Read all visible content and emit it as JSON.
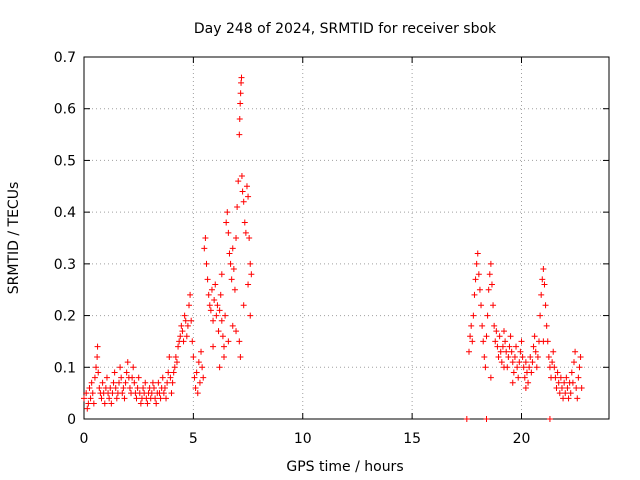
{
  "chart_data": {
    "type": "scatter",
    "title": "Day 248 of 2024, SRMTID for receiver sbok",
    "xlabel": "GPS time / hours",
    "ylabel": "SRMTID / TECUs",
    "xlim": [
      0,
      24
    ],
    "ylim": [
      0,
      0.7
    ],
    "x_ticks": [
      0,
      5,
      10,
      15,
      20
    ],
    "x_tick_labels": [
      "0",
      "5",
      "10",
      "15",
      "20"
    ],
    "y_ticks": [
      0,
      0.1,
      0.2,
      0.3,
      0.4,
      0.5,
      0.6,
      0.7
    ],
    "y_tick_labels": [
      "0",
      "0.1",
      "0.2",
      "0.3",
      "0.4",
      "0.5",
      "0.6",
      "0.7"
    ],
    "grid": true,
    "marker": "+",
    "color": "#ff0000",
    "series": [
      {
        "name": "SRMTID",
        "points": [
          [
            0.0,
            0.04
          ],
          [
            0.1,
            0.05
          ],
          [
            0.15,
            0.02
          ],
          [
            0.2,
            0.03
          ],
          [
            0.25,
            0.06
          ],
          [
            0.3,
            0.04
          ],
          [
            0.35,
            0.07
          ],
          [
            0.4,
            0.05
          ],
          [
            0.45,
            0.03
          ],
          [
            0.5,
            0.08
          ],
          [
            0.55,
            0.1
          ],
          [
            0.6,
            0.12
          ],
          [
            0.62,
            0.14
          ],
          [
            0.65,
            0.09
          ],
          [
            0.7,
            0.06
          ],
          [
            0.75,
            0.05
          ],
          [
            0.8,
            0.04
          ],
          [
            0.85,
            0.07
          ],
          [
            0.9,
            0.05
          ],
          [
            0.95,
            0.03
          ],
          [
            1.0,
            0.06
          ],
          [
            1.05,
            0.08
          ],
          [
            1.1,
            0.05
          ],
          [
            1.15,
            0.04
          ],
          [
            1.2,
            0.06
          ],
          [
            1.25,
            0.03
          ],
          [
            1.3,
            0.05
          ],
          [
            1.35,
            0.07
          ],
          [
            1.4,
            0.09
          ],
          [
            1.45,
            0.06
          ],
          [
            1.5,
            0.04
          ],
          [
            1.55,
            0.05
          ],
          [
            1.6,
            0.07
          ],
          [
            1.65,
            0.1
          ],
          [
            1.7,
            0.08
          ],
          [
            1.75,
            0.05
          ],
          [
            1.8,
            0.06
          ],
          [
            1.85,
            0.04
          ],
          [
            1.9,
            0.07
          ],
          [
            1.95,
            0.09
          ],
          [
            2.0,
            0.11
          ],
          [
            2.05,
            0.08
          ],
          [
            2.1,
            0.06
          ],
          [
            2.15,
            0.05
          ],
          [
            2.2,
            0.08
          ],
          [
            2.25,
            0.1
          ],
          [
            2.3,
            0.07
          ],
          [
            2.35,
            0.05
          ],
          [
            2.4,
            0.04
          ],
          [
            2.45,
            0.06
          ],
          [
            2.5,
            0.08
          ],
          [
            2.55,
            0.05
          ],
          [
            2.6,
            0.03
          ],
          [
            2.65,
            0.04
          ],
          [
            2.7,
            0.06
          ],
          [
            2.75,
            0.05
          ],
          [
            2.8,
            0.07
          ],
          [
            2.85,
            0.04
          ],
          [
            2.9,
            0.03
          ],
          [
            2.95,
            0.05
          ],
          [
            3.0,
            0.06
          ],
          [
            3.05,
            0.04
          ],
          [
            3.1,
            0.05
          ],
          [
            3.15,
            0.07
          ],
          [
            3.2,
            0.06
          ],
          [
            3.25,
            0.04
          ],
          [
            3.3,
            0.03
          ],
          [
            3.35,
            0.05
          ],
          [
            3.4,
            0.07
          ],
          [
            3.45,
            0.05
          ],
          [
            3.5,
            0.04
          ],
          [
            3.55,
            0.06
          ],
          [
            3.6,
            0.08
          ],
          [
            3.65,
            0.05
          ],
          [
            3.7,
            0.06
          ],
          [
            3.75,
            0.04
          ],
          [
            3.8,
            0.07
          ],
          [
            3.85,
            0.09
          ],
          [
            3.9,
            0.12
          ],
          [
            3.95,
            0.08
          ],
          [
            4.0,
            0.05
          ],
          [
            4.05,
            0.07
          ],
          [
            4.1,
            0.09
          ],
          [
            4.15,
            0.1
          ],
          [
            4.2,
            0.12
          ],
          [
            4.25,
            0.11
          ],
          [
            4.3,
            0.14
          ],
          [
            4.35,
            0.15
          ],
          [
            4.4,
            0.16
          ],
          [
            4.45,
            0.18
          ],
          [
            4.5,
            0.17
          ],
          [
            4.55,
            0.15
          ],
          [
            4.6,
            0.2
          ],
          [
            4.65,
            0.19
          ],
          [
            4.7,
            0.16
          ],
          [
            4.75,
            0.18
          ],
          [
            4.8,
            0.22
          ],
          [
            4.85,
            0.24
          ],
          [
            4.9,
            0.19
          ],
          [
            4.95,
            0.15
          ],
          [
            5.0,
            0.12
          ],
          [
            5.05,
            0.08
          ],
          [
            5.1,
            0.06
          ],
          [
            5.15,
            0.09
          ],
          [
            5.2,
            0.05
          ],
          [
            5.25,
            0.11
          ],
          [
            5.3,
            0.07
          ],
          [
            5.35,
            0.13
          ],
          [
            5.4,
            0.1
          ],
          [
            5.45,
            0.08
          ],
          [
            5.5,
            0.33
          ],
          [
            5.55,
            0.35
          ],
          [
            5.6,
            0.3
          ],
          [
            5.65,
            0.27
          ],
          [
            5.7,
            0.24
          ],
          [
            5.75,
            0.22
          ],
          [
            5.8,
            0.21
          ],
          [
            5.85,
            0.25
          ],
          [
            5.9,
            0.19
          ],
          [
            5.95,
            0.23
          ],
          [
            6.0,
            0.26
          ],
          [
            6.05,
            0.2
          ],
          [
            6.1,
            0.22
          ],
          [
            6.15,
            0.17
          ],
          [
            6.2,
            0.21
          ],
          [
            6.25,
            0.24
          ],
          [
            6.3,
            0.19
          ],
          [
            6.35,
            0.16
          ],
          [
            6.4,
            0.14
          ],
          [
            6.45,
            0.2
          ],
          [
            6.5,
            0.38
          ],
          [
            6.55,
            0.4
          ],
          [
            6.6,
            0.36
          ],
          [
            6.65,
            0.32
          ],
          [
            6.7,
            0.3
          ],
          [
            6.75,
            0.27
          ],
          [
            6.8,
            0.33
          ],
          [
            6.85,
            0.29
          ],
          [
            6.9,
            0.25
          ],
          [
            6.95,
            0.35
          ],
          [
            7.0,
            0.41
          ],
          [
            7.05,
            0.46
          ],
          [
            7.1,
            0.55
          ],
          [
            7.12,
            0.58
          ],
          [
            7.14,
            0.61
          ],
          [
            7.16,
            0.63
          ],
          [
            7.18,
            0.65
          ],
          [
            7.2,
            0.66
          ],
          [
            7.22,
            0.47
          ],
          [
            7.25,
            0.44
          ],
          [
            7.3,
            0.42
          ],
          [
            7.35,
            0.38
          ],
          [
            7.4,
            0.36
          ],
          [
            7.45,
            0.45
          ],
          [
            7.5,
            0.43
          ],
          [
            7.55,
            0.35
          ],
          [
            7.6,
            0.3
          ],
          [
            7.65,
            0.28
          ],
          [
            7.1,
            0.15
          ],
          [
            7.15,
            0.12
          ],
          [
            6.6,
            0.15
          ],
          [
            6.2,
            0.1
          ],
          [
            5.9,
            0.14
          ],
          [
            6.4,
            0.12
          ],
          [
            6.8,
            0.18
          ],
          [
            7.3,
            0.22
          ],
          [
            7.5,
            0.26
          ],
          [
            7.6,
            0.2
          ],
          [
            6.95,
            0.17
          ],
          [
            6.3,
            0.28
          ],
          [
            17.5,
            0.0
          ],
          [
            18.4,
            0.0
          ],
          [
            17.6,
            0.13
          ],
          [
            17.65,
            0.16
          ],
          [
            17.7,
            0.18
          ],
          [
            17.75,
            0.15
          ],
          [
            17.8,
            0.2
          ],
          [
            17.85,
            0.24
          ],
          [
            17.9,
            0.27
          ],
          [
            17.95,
            0.3
          ],
          [
            18.0,
            0.32
          ],
          [
            18.05,
            0.28
          ],
          [
            18.1,
            0.25
          ],
          [
            18.15,
            0.22
          ],
          [
            18.2,
            0.18
          ],
          [
            18.25,
            0.15
          ],
          [
            18.3,
            0.12
          ],
          [
            18.35,
            0.1
          ],
          [
            18.4,
            0.16
          ],
          [
            18.45,
            0.2
          ],
          [
            18.5,
            0.25
          ],
          [
            18.55,
            0.28
          ],
          [
            18.6,
            0.3
          ],
          [
            18.65,
            0.26
          ],
          [
            18.7,
            0.22
          ],
          [
            18.75,
            0.18
          ],
          [
            18.8,
            0.15
          ],
          [
            18.85,
            0.17
          ],
          [
            18.9,
            0.14
          ],
          [
            18.95,
            0.12
          ],
          [
            19.0,
            0.16
          ],
          [
            19.05,
            0.13
          ],
          [
            19.1,
            0.11
          ],
          [
            19.15,
            0.14
          ],
          [
            19.2,
            0.17
          ],
          [
            19.25,
            0.15
          ],
          [
            19.3,
            0.13
          ],
          [
            19.35,
            0.1
          ],
          [
            19.4,
            0.12
          ],
          [
            19.45,
            0.14
          ],
          [
            19.5,
            0.16
          ],
          [
            19.55,
            0.13
          ],
          [
            19.6,
            0.11
          ],
          [
            19.65,
            0.09
          ],
          [
            19.7,
            0.12
          ],
          [
            19.75,
            0.14
          ],
          [
            19.8,
            0.1
          ],
          [
            19.85,
            0.08
          ],
          [
            19.9,
            0.11
          ],
          [
            19.95,
            0.13
          ],
          [
            20.0,
            0.15
          ],
          [
            20.05,
            0.12
          ],
          [
            20.1,
            0.1
          ],
          [
            20.15,
            0.08
          ],
          [
            20.2,
            0.11
          ],
          [
            20.25,
            0.09
          ],
          [
            20.3,
            0.07
          ],
          [
            20.35,
            0.1
          ],
          [
            20.4,
            0.12
          ],
          [
            20.45,
            0.09
          ],
          [
            20.5,
            0.11
          ],
          [
            20.55,
            0.14
          ],
          [
            20.6,
            0.16
          ],
          [
            20.65,
            0.13
          ],
          [
            20.7,
            0.1
          ],
          [
            20.75,
            0.12
          ],
          [
            20.8,
            0.15
          ],
          [
            20.85,
            0.2
          ],
          [
            20.9,
            0.24
          ],
          [
            20.95,
            0.27
          ],
          [
            21.0,
            0.29
          ],
          [
            21.05,
            0.26
          ],
          [
            21.1,
            0.22
          ],
          [
            21.15,
            0.18
          ],
          [
            21.2,
            0.15
          ],
          [
            21.25,
            0.12
          ],
          [
            21.3,
            0.1
          ],
          [
            21.35,
            0.08
          ],
          [
            21.4,
            0.11
          ],
          [
            21.45,
            0.13
          ],
          [
            21.5,
            0.1
          ],
          [
            21.55,
            0.08
          ],
          [
            21.6,
            0.06
          ],
          [
            21.65,
            0.09
          ],
          [
            21.7,
            0.07
          ],
          [
            21.75,
            0.05
          ],
          [
            21.8,
            0.08
          ],
          [
            21.85,
            0.06
          ],
          [
            21.9,
            0.04
          ],
          [
            21.95,
            0.07
          ],
          [
            22.0,
            0.05
          ],
          [
            22.05,
            0.08
          ],
          [
            22.1,
            0.06
          ],
          [
            22.15,
            0.04
          ],
          [
            22.2,
            0.07
          ],
          [
            22.25,
            0.05
          ],
          [
            22.3,
            0.09
          ],
          [
            22.35,
            0.07
          ],
          [
            22.4,
            0.11
          ],
          [
            22.45,
            0.13
          ],
          [
            22.5,
            0.06
          ],
          [
            22.55,
            0.04
          ],
          [
            22.6,
            0.08
          ],
          [
            22.65,
            0.1
          ],
          [
            22.7,
            0.12
          ],
          [
            22.75,
            0.06
          ],
          [
            18.6,
            0.08
          ],
          [
            19.2,
            0.1
          ],
          [
            19.6,
            0.07
          ],
          [
            20.2,
            0.06
          ],
          [
            21.0,
            0.15
          ],
          [
            21.3,
            0.0
          ]
        ]
      }
    ]
  }
}
